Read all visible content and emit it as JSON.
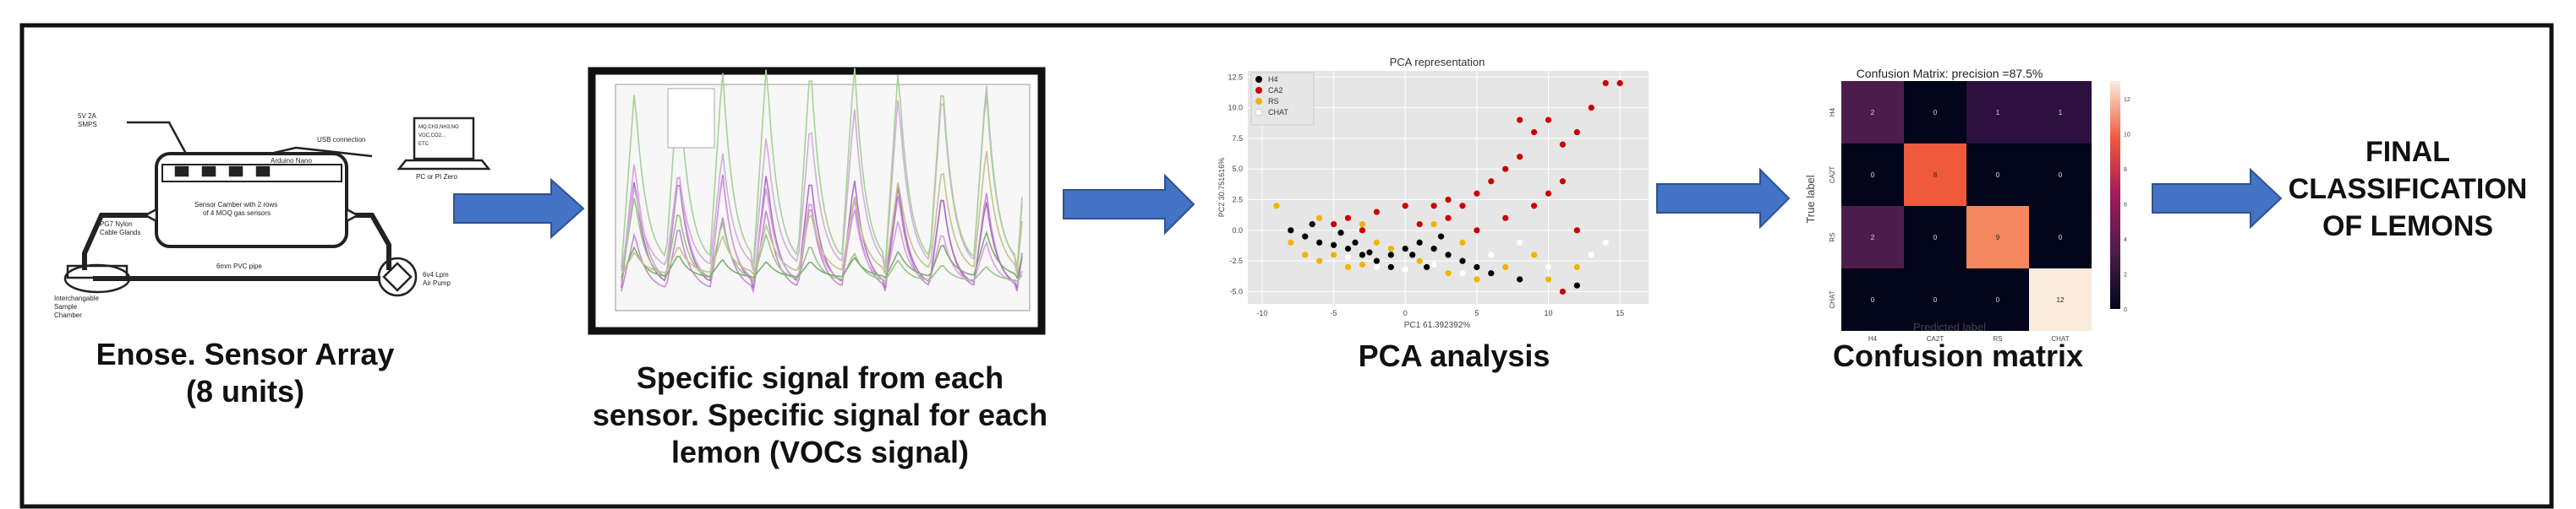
{
  "steps": {
    "enose": {
      "caption_line1": "Enose. Sensor Array",
      "caption_line2": "(8 units)",
      "labels": {
        "power": "5V 2A",
        "power2": "SMPS",
        "usb": "USB connection",
        "board": "Arduino Nano",
        "chamber1": "Sensor Camber with 2 rows",
        "chamber2": "of 4 MOQ gas sensors",
        "glands1": "PG7 Nylon",
        "glands2": "Cable Glands",
        "pipe": "6mm PVC pipe",
        "sample1": "Interchangable",
        "sample2": "Sample",
        "sample3": "Chamber",
        "pump1": "6v4 Lpm",
        "pump2": "Air Pump",
        "pc": "PC or PI Zero",
        "screen_lines": [
          "MQ,CH3,NH3,NO",
          "VOC,CO2...",
          "ETC"
        ]
      }
    },
    "signals": {
      "caption_line1": "Specific signal from each",
      "caption_line2": "sensor. Specific signal for each",
      "caption_line3": "lemon (VOCs signal)"
    },
    "pca": {
      "caption": "PCA analysis"
    },
    "confusion": {
      "caption": "Confusion matrix"
    },
    "final": {
      "line1": "FINAL",
      "line2": "CLASSIFICATION",
      "line3": "OF LEMONS"
    }
  },
  "colors": {
    "arrow_fill": "#4472c4",
    "arrow_stroke": "#2f528f",
    "series_a": "#000000",
    "series_b": "#cc0000",
    "series_c": "#f0b400",
    "series_d": "#ffffff"
  },
  "chart_data": [
    {
      "type": "line",
      "title": "",
      "note": "sensor response curves over time, 8 sensors"
    },
    {
      "type": "scatter",
      "title": "PCA representation",
      "xlabel": "PC1 61.392392%",
      "ylabel": "PC2 30.751616%",
      "xticks": [
        "-10",
        "-5",
        "0",
        "5",
        "10",
        "15"
      ],
      "yticks": [
        "12.5",
        "10.0",
        "7.5",
        "5.0",
        "2.5",
        "0.0",
        "-2.5",
        "-5.0"
      ],
      "xlim": [
        -11,
        17
      ],
      "ylim": [
        -6,
        13
      ],
      "legend": [
        "H4",
        "CA2",
        "RS",
        "CHAT"
      ],
      "series": [
        {
          "name": "H4",
          "color": "#000000",
          "points": [
            [
              -7,
              -0.5
            ],
            [
              -6,
              -1
            ],
            [
              -5,
              -1.2
            ],
            [
              -4,
              -1.5
            ],
            [
              -3,
              -2
            ],
            [
              -2,
              -2.5
            ],
            [
              -1,
              -2
            ],
            [
              0,
              -1.5
            ],
            [
              0.5,
              -2
            ],
            [
              1,
              -1
            ],
            [
              2,
              -1.5
            ],
            [
              3,
              -2
            ],
            [
              4,
              -2.5
            ],
            [
              5,
              -3
            ],
            [
              -8,
              0
            ],
            [
              -6.5,
              0.5
            ],
            [
              -4.5,
              -0.2
            ],
            [
              -3.5,
              -1
            ],
            [
              -2.5,
              -1.8
            ],
            [
              1.5,
              -3
            ],
            [
              6,
              -3.5
            ],
            [
              8,
              -4
            ],
            [
              12,
              -4.5
            ],
            [
              -1,
              -3
            ],
            [
              2.5,
              -0.5
            ]
          ]
        },
        {
          "name": "CA2",
          "color": "#cc0000",
          "points": [
            [
              -5,
              0.5
            ],
            [
              -4,
              1
            ],
            [
              -3,
              0
            ],
            [
              -2,
              1.5
            ],
            [
              0,
              2
            ],
            [
              1,
              0.5
            ],
            [
              3,
              1
            ],
            [
              4,
              2
            ],
            [
              5,
              3
            ],
            [
              6,
              4
            ],
            [
              7,
              5
            ],
            [
              8,
              6
            ],
            [
              9,
              8
            ],
            [
              10,
              9
            ],
            [
              11,
              7
            ],
            [
              12,
              8
            ],
            [
              13,
              10
            ],
            [
              14,
              12
            ],
            [
              15,
              12
            ],
            [
              10,
              3
            ],
            [
              11,
              4
            ],
            [
              9,
              2
            ],
            [
              7,
              1
            ],
            [
              5,
              0
            ],
            [
              3,
              2.5
            ],
            [
              2,
              2
            ],
            [
              11,
              -5
            ],
            [
              12,
              0
            ],
            [
              8,
              9
            ]
          ]
        },
        {
          "name": "RS",
          "color": "#f0b400",
          "points": [
            [
              -9,
              2
            ],
            [
              -8,
              -1
            ],
            [
              -7,
              -2
            ],
            [
              -6,
              -2.5
            ],
            [
              -5,
              -2
            ],
            [
              -4,
              -3
            ],
            [
              -3,
              -2.8
            ],
            [
              -2,
              -1
            ],
            [
              -1,
              -1.5
            ],
            [
              1,
              -2.5
            ],
            [
              3,
              -3.5
            ],
            [
              5,
              -4
            ],
            [
              7,
              -3
            ],
            [
              9,
              -2
            ],
            [
              10,
              -4
            ],
            [
              12,
              -3
            ],
            [
              -6,
              1
            ],
            [
              -3,
              0.5
            ],
            [
              2,
              0.5
            ],
            [
              4,
              -1
            ]
          ]
        },
        {
          "name": "CHAT",
          "color": "#ffffff",
          "points": [
            [
              -2,
              -3
            ],
            [
              0,
              -3.2
            ],
            [
              2,
              -2.8
            ],
            [
              4,
              -3.5
            ],
            [
              6,
              -2
            ],
            [
              -4,
              -2.2
            ],
            [
              8,
              -1
            ],
            [
              10,
              -3
            ],
            [
              13,
              -2
            ],
            [
              14,
              -1
            ]
          ]
        }
      ]
    },
    {
      "type": "heatmap",
      "title": "Confusion Matrix: precision =87.5%",
      "xlabel": "Predicted label",
      "ylabel": "True label",
      "categories": [
        "H4",
        "CA2T",
        "RS",
        "CHAT"
      ],
      "values": [
        [
          2,
          0,
          1,
          1
        ],
        [
          0,
          8,
          0,
          0
        ],
        [
          2,
          0,
          9,
          0
        ],
        [
          0,
          0,
          0,
          12
        ]
      ],
      "colorbar_ticks": [
        "12",
        "10",
        "8",
        "6",
        "4",
        "2",
        "0"
      ]
    }
  ]
}
